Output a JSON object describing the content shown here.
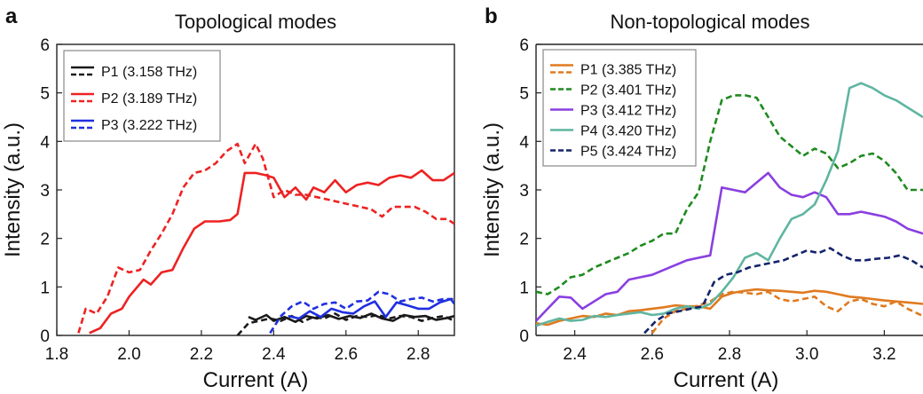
{
  "chart_data": [
    {
      "type": "line",
      "panel_letter": "a",
      "title": "Topological modes",
      "xlabel": "Current (A)",
      "ylabel": "Intensity (a.u.)",
      "xlim": [
        1.8,
        2.9
      ],
      "ylim": [
        0,
        6
      ],
      "xticks": [
        "1.8",
        "2.0",
        "2.2",
        "2.4",
        "2.6",
        "2.8"
      ],
      "xtick_values": [
        1.8,
        2.0,
        2.2,
        2.4,
        2.6,
        2.8
      ],
      "yticks": [
        "0",
        "1",
        "2",
        "3",
        "4",
        "5",
        "6"
      ],
      "ytick_values": [
        0,
        1,
        2,
        3,
        4,
        5,
        6
      ],
      "grid": false,
      "legend_position": "top-left",
      "legend_boxed": true,
      "legend": [
        {
          "label": "P1 (3.158 THz)",
          "color": "#1a1a1a"
        },
        {
          "label": "P2 (3.189 THz)",
          "color": "#ee2222"
        },
        {
          "label": "P3 (3.222 THz)",
          "color": "#1f2fe0"
        }
      ],
      "series": [
        {
          "legend_index": 0,
          "style": "solid",
          "color": "#1a1a1a",
          "x": [
            2.33,
            2.35,
            2.38,
            2.4,
            2.43,
            2.46,
            2.49,
            2.52,
            2.55,
            2.58,
            2.61,
            2.64,
            2.67,
            2.7,
            2.73,
            2.76,
            2.79,
            2.82,
            2.85,
            2.88,
            2.9
          ],
          "y": [
            0.38,
            0.32,
            0.42,
            0.3,
            0.38,
            0.28,
            0.4,
            0.35,
            0.42,
            0.34,
            0.4,
            0.36,
            0.45,
            0.35,
            0.3,
            0.42,
            0.38,
            0.4,
            0.32,
            0.36,
            0.4
          ]
        },
        {
          "legend_index": 0,
          "style": "dashed",
          "color": "#1a1a1a",
          "x": [
            2.3,
            2.33,
            2.36,
            2.39,
            2.42,
            2.45,
            2.48,
            2.51,
            2.54,
            2.57,
            2.6,
            2.63,
            2.66,
            2.69,
            2.72,
            2.75,
            2.78,
            2.81,
            2.84,
            2.87,
            2.9
          ],
          "y": [
            0.0,
            0.25,
            0.3,
            0.35,
            0.3,
            0.4,
            0.28,
            0.38,
            0.35,
            0.45,
            0.32,
            0.4,
            0.38,
            0.42,
            0.35,
            0.4,
            0.38,
            0.3,
            0.36,
            0.4,
            0.3
          ]
        },
        {
          "legend_index": 1,
          "style": "solid",
          "color": "#ee2222",
          "x": [
            1.89,
            1.92,
            1.95,
            1.98,
            2.0,
            2.04,
            2.06,
            2.09,
            2.12,
            2.15,
            2.18,
            2.21,
            2.25,
            2.28,
            2.3,
            2.32,
            2.35,
            2.38,
            2.4,
            2.43,
            2.46,
            2.49,
            2.51,
            2.54,
            2.57,
            2.6,
            2.63,
            2.66,
            2.69,
            2.72,
            2.75,
            2.78,
            2.81,
            2.84,
            2.87,
            2.9
          ],
          "y": [
            0.05,
            0.15,
            0.45,
            0.55,
            0.8,
            1.15,
            1.05,
            1.3,
            1.35,
            1.8,
            2.2,
            2.35,
            2.35,
            2.38,
            2.5,
            3.35,
            3.35,
            3.3,
            3.25,
            2.85,
            3.05,
            2.8,
            3.05,
            2.95,
            3.2,
            2.95,
            3.1,
            3.15,
            3.1,
            3.25,
            3.3,
            3.25,
            3.4,
            3.2,
            3.2,
            3.35
          ]
        },
        {
          "legend_index": 1,
          "style": "dashed",
          "color": "#ee2222",
          "x": [
            1.86,
            1.88,
            1.91,
            1.94,
            1.97,
            2.0,
            2.03,
            2.06,
            2.09,
            2.12,
            2.15,
            2.18,
            2.21,
            2.24,
            2.27,
            2.3,
            2.32,
            2.35,
            2.37,
            2.4,
            2.43,
            2.46,
            2.49,
            2.52,
            2.55,
            2.58,
            2.61,
            2.64,
            2.67,
            2.7,
            2.73,
            2.76,
            2.79,
            2.82,
            2.85,
            2.88,
            2.9
          ],
          "y": [
            0.05,
            0.55,
            0.45,
            0.8,
            1.4,
            1.3,
            1.35,
            1.75,
            2.1,
            2.5,
            3.05,
            3.35,
            3.4,
            3.55,
            3.8,
            3.95,
            3.55,
            3.95,
            3.65,
            2.85,
            3.0,
            2.9,
            2.9,
            2.85,
            2.8,
            2.75,
            2.7,
            2.65,
            2.6,
            2.45,
            2.65,
            2.65,
            2.65,
            2.55,
            2.4,
            2.4,
            2.3
          ]
        },
        {
          "legend_index": 2,
          "style": "solid",
          "color": "#1f2fe0",
          "x": [
            2.44,
            2.47,
            2.5,
            2.53,
            2.56,
            2.59,
            2.62,
            2.65,
            2.68,
            2.71,
            2.74,
            2.77,
            2.8,
            2.83,
            2.86,
            2.89,
            2.9
          ],
          "y": [
            0.4,
            0.35,
            0.5,
            0.38,
            0.55,
            0.48,
            0.45,
            0.6,
            0.7,
            0.38,
            0.68,
            0.62,
            0.55,
            0.55,
            0.68,
            0.75,
            0.65
          ]
        },
        {
          "legend_index": 2,
          "style": "dashed",
          "color": "#1f2fe0",
          "x": [
            2.39,
            2.42,
            2.45,
            2.48,
            2.51,
            2.54,
            2.57,
            2.6,
            2.63,
            2.66,
            2.69,
            2.72,
            2.75,
            2.78,
            2.81,
            2.84,
            2.87,
            2.9
          ],
          "y": [
            0.05,
            0.4,
            0.6,
            0.7,
            0.55,
            0.65,
            0.68,
            0.55,
            0.7,
            0.72,
            0.9,
            0.85,
            0.7,
            0.75,
            0.78,
            0.7,
            0.75,
            0.75
          ]
        }
      ]
    },
    {
      "type": "line",
      "panel_letter": "b",
      "title": "Non-topological modes",
      "xlabel": "Current (A)",
      "ylabel": "Intensity (a.u.)",
      "xlim": [
        2.3,
        3.3
      ],
      "ylim": [
        0,
        6
      ],
      "xticks": [
        "2.4",
        "2.6",
        "2.8",
        "3.0",
        "3.2"
      ],
      "xtick_values": [
        2.4,
        2.6,
        2.8,
        3.0,
        3.2
      ],
      "yticks": [
        "0",
        "1",
        "2",
        "3",
        "4",
        "5",
        "6"
      ],
      "ytick_values": [
        0,
        1,
        2,
        3,
        4,
        5,
        6
      ],
      "grid": false,
      "legend_position": "top-left",
      "legend_boxed": true,
      "legend": [
        {
          "label": "P1 (3.385 THz)",
          "color": "#e07a1f",
          "style": "solid+dashed"
        },
        {
          "label": "P2 (3.401 THz)",
          "color": "#1e8a1e",
          "style": "dashed"
        },
        {
          "label": "P3 (3.412 THz)",
          "color": "#8a3fe0",
          "style": "solid"
        },
        {
          "label": "P4 (3.420 THz)",
          "color": "#5fb5a0",
          "style": "solid"
        },
        {
          "label": "P5 (3.424 THz)",
          "color": "#14236b",
          "style": "dashed"
        }
      ],
      "series": [
        {
          "legend_index": 0,
          "style": "solid",
          "color": "#e07a1f",
          "x": [
            2.3,
            2.33,
            2.36,
            2.39,
            2.42,
            2.45,
            2.48,
            2.51,
            2.54,
            2.57,
            2.6,
            2.63,
            2.66,
            2.69,
            2.72,
            2.75,
            2.78,
            2.81,
            2.84,
            2.87,
            2.9,
            2.93,
            2.96,
            2.99,
            3.02,
            3.05,
            3.08,
            3.11,
            3.14,
            3.17,
            3.2,
            3.23,
            3.26,
            3.3
          ],
          "y": [
            0.25,
            0.22,
            0.3,
            0.35,
            0.4,
            0.38,
            0.45,
            0.42,
            0.5,
            0.52,
            0.55,
            0.58,
            0.62,
            0.6,
            0.6,
            0.55,
            0.8,
            0.88,
            0.92,
            0.95,
            0.93,
            0.92,
            0.9,
            0.88,
            0.92,
            0.9,
            0.85,
            0.8,
            0.78,
            0.75,
            0.72,
            0.7,
            0.68,
            0.65
          ]
        },
        {
          "legend_index": 0,
          "style": "dashed",
          "color": "#e07a1f",
          "x": [
            2.6,
            2.63,
            2.66,
            2.69,
            2.72,
            2.75,
            2.78,
            2.81,
            2.84,
            2.87,
            2.9,
            2.93,
            2.96,
            2.99,
            3.02,
            3.05,
            3.08,
            3.11,
            3.14,
            3.17,
            3.2,
            3.23,
            3.26,
            3.3
          ],
          "y": [
            0.05,
            0.35,
            0.5,
            0.55,
            0.62,
            0.7,
            0.85,
            0.9,
            0.88,
            0.85,
            0.9,
            0.75,
            0.7,
            0.75,
            0.8,
            0.6,
            0.5,
            0.7,
            0.75,
            0.65,
            0.6,
            0.7,
            0.55,
            0.4
          ]
        },
        {
          "legend_index": 1,
          "style": "dashed",
          "color": "#1e8a1e",
          "x": [
            2.3,
            2.33,
            2.36,
            2.39,
            2.42,
            2.45,
            2.48,
            2.51,
            2.54,
            2.57,
            2.6,
            2.63,
            2.66,
            2.69,
            2.72,
            2.75,
            2.78,
            2.81,
            2.84,
            2.87,
            2.9,
            2.93,
            2.96,
            2.99,
            3.02,
            3.05,
            3.08,
            3.11,
            3.14,
            3.17,
            3.2,
            3.23,
            3.26,
            3.3
          ],
          "y": [
            0.9,
            0.85,
            1.0,
            1.2,
            1.25,
            1.4,
            1.5,
            1.6,
            1.7,
            1.85,
            1.95,
            2.1,
            2.1,
            2.6,
            2.95,
            4.0,
            4.85,
            4.95,
            4.95,
            4.9,
            4.5,
            4.1,
            3.9,
            3.7,
            3.85,
            3.75,
            3.45,
            3.55,
            3.7,
            3.75,
            3.6,
            3.35,
            3.0,
            3.0
          ]
        },
        {
          "legend_index": 2,
          "style": "solid",
          "color": "#8a3fe0",
          "x": [
            2.3,
            2.33,
            2.36,
            2.39,
            2.42,
            2.45,
            2.48,
            2.51,
            2.54,
            2.57,
            2.6,
            2.63,
            2.66,
            2.69,
            2.72,
            2.75,
            2.78,
            2.81,
            2.84,
            2.87,
            2.9,
            2.93,
            2.96,
            2.99,
            3.02,
            3.05,
            3.08,
            3.11,
            3.14,
            3.17,
            3.2,
            3.23,
            3.26,
            3.3
          ],
          "y": [
            0.3,
            0.55,
            0.8,
            0.78,
            0.55,
            0.7,
            0.85,
            0.9,
            1.15,
            1.2,
            1.25,
            1.35,
            1.45,
            1.55,
            1.6,
            1.65,
            3.05,
            3.0,
            2.95,
            3.15,
            3.35,
            3.05,
            2.9,
            2.85,
            2.95,
            2.85,
            2.5,
            2.5,
            2.55,
            2.5,
            2.45,
            2.35,
            2.2,
            2.1
          ]
        },
        {
          "legend_index": 3,
          "style": "solid",
          "color": "#5fb5a0",
          "x": [
            2.3,
            2.33,
            2.36,
            2.39,
            2.42,
            2.45,
            2.48,
            2.51,
            2.54,
            2.57,
            2.6,
            2.63,
            2.66,
            2.69,
            2.72,
            2.75,
            2.78,
            2.81,
            2.84,
            2.87,
            2.9,
            2.93,
            2.96,
            2.99,
            3.02,
            3.05,
            3.08,
            3.11,
            3.14,
            3.17,
            3.2,
            3.23,
            3.26,
            3.3
          ],
          "y": [
            0.2,
            0.28,
            0.35,
            0.3,
            0.32,
            0.4,
            0.38,
            0.42,
            0.45,
            0.48,
            0.42,
            0.45,
            0.55,
            0.6,
            0.55,
            0.65,
            0.9,
            1.2,
            1.6,
            1.7,
            1.55,
            2.0,
            2.4,
            2.5,
            2.7,
            3.2,
            3.8,
            5.1,
            5.2,
            5.1,
            4.95,
            4.85,
            4.7,
            4.5
          ]
        },
        {
          "legend_index": 4,
          "style": "dashed",
          "color": "#14236b",
          "x": [
            2.58,
            2.61,
            2.64,
            2.67,
            2.7,
            2.73,
            2.76,
            2.79,
            2.82,
            2.85,
            2.88,
            2.91,
            2.94,
            2.97,
            3.0,
            3.03,
            3.06,
            3.09,
            3.12,
            3.15,
            3.18,
            3.21,
            3.24,
            3.27,
            3.3
          ],
          "y": [
            0.05,
            0.3,
            0.45,
            0.5,
            0.55,
            0.6,
            1.1,
            1.25,
            1.3,
            1.4,
            1.45,
            1.5,
            1.55,
            1.65,
            1.75,
            1.7,
            1.8,
            1.65,
            1.55,
            1.55,
            1.58,
            1.6,
            1.65,
            1.55,
            1.4
          ]
        }
      ]
    }
  ]
}
